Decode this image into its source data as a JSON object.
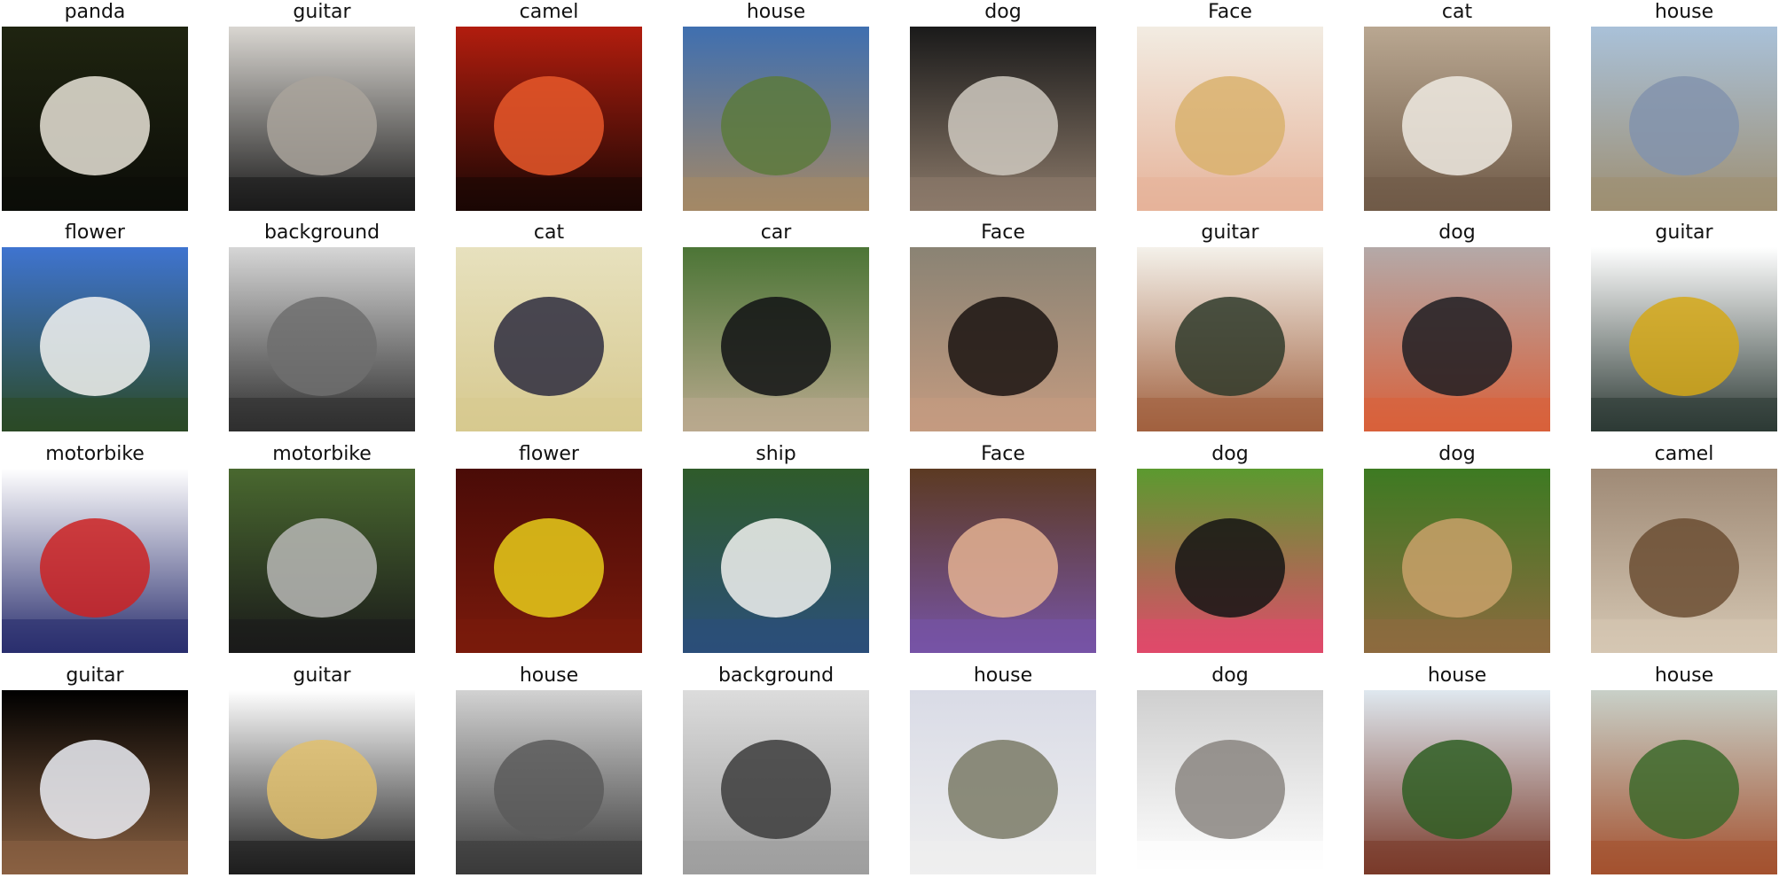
{
  "grid": {
    "columns": 8,
    "rows": 4,
    "cells": [
      {
        "label": "panda",
        "colors": [
          "#1f2410",
          "#e9e4d8",
          "#0c0d08"
        ]
      },
      {
        "label": "guitar",
        "colors": [
          "#d9d6d1",
          "#a9a39b",
          "#1a1a1a"
        ]
      },
      {
        "label": "camel",
        "colors": [
          "#b21d0e",
          "#e8582a",
          "#1a0704"
        ]
      },
      {
        "label": "house",
        "colors": [
          "#3f6fb0",
          "#5c7a3c",
          "#a48866"
        ]
      },
      {
        "label": "dog",
        "colors": [
          "#1a1a1a",
          "#cfc9c0",
          "#8c7a6a"
        ]
      },
      {
        "label": "Face",
        "colors": [
          "#f2ece2",
          "#d9b26d",
          "#e6b39a"
        ]
      },
      {
        "label": "cat",
        "colors": [
          "#b9a791",
          "#eeeae2",
          "#6f5a47"
        ]
      },
      {
        "label": "house",
        "colors": [
          "#a9c1d9",
          "#8293ad",
          "#9e8f72"
        ]
      },
      {
        "label": "flower",
        "colors": [
          "#3f74d0",
          "#f3f3f1",
          "#2b4a26"
        ]
      },
      {
        "label": "background",
        "colors": [
          "#d6d6d6",
          "#6e6e6e",
          "#2e2e2e"
        ]
      },
      {
        "label": "cat",
        "colors": [
          "#e7e1be",
          "#2d2c3e",
          "#d7c98f"
        ]
      },
      {
        "label": "car",
        "colors": [
          "#4c7536",
          "#111214",
          "#b9a98e"
        ]
      },
      {
        "label": "Face",
        "colors": [
          "#8a8374",
          "#1a1310",
          "#c49b80"
        ]
      },
      {
        "label": "guitar",
        "colors": [
          "#f4f1ea",
          "#2f3a2a",
          "#a1613f"
        ]
      },
      {
        "label": "dog",
        "colors": [
          "#b4a9a8",
          "#1e1d22",
          "#d8603a"
        ]
      },
      {
        "label": "guitar",
        "colors": [
          "#ffffff",
          "#d5a817",
          "#2d3a35"
        ]
      },
      {
        "label": "motorbike",
        "colors": [
          "#ffffff",
          "#cc2222",
          "#2a2f6e"
        ]
      },
      {
        "label": "motorbike",
        "colors": [
          "#49682f",
          "#b9b9b6",
          "#1a1a1a"
        ]
      },
      {
        "label": "flower",
        "colors": [
          "#4a0b07",
          "#e8cc1a",
          "#7a1a0c"
        ]
      },
      {
        "label": "ship",
        "colors": [
          "#2f5b2a",
          "#f2f2f0",
          "#2b4f7a"
        ]
      },
      {
        "label": "Face",
        "colors": [
          "#5c3a22",
          "#e4b192",
          "#7654a6"
        ]
      },
      {
        "label": "dog",
        "colors": [
          "#5b9a2f",
          "#141414",
          "#e04a6a"
        ]
      },
      {
        "label": "dog",
        "colors": [
          "#3d7a22",
          "#c9a16a",
          "#8d6a3f"
        ]
      },
      {
        "label": "camel",
        "colors": [
          "#9f8a76",
          "#6b4d32",
          "#d5c7b3"
        ]
      },
      {
        "label": "guitar",
        "colors": [
          "#000000",
          "#eceef6",
          "#8a6142"
        ]
      },
      {
        "label": "guitar",
        "colors": [
          "#ffffff",
          "#e1c06d",
          "#1e1e1e"
        ]
      },
      {
        "label": "house",
        "colors": [
          "#d2d2d2",
          "#5a5a5a",
          "#3a3a3a"
        ]
      },
      {
        "label": "background",
        "colors": [
          "#dcdcdc",
          "#3c3c3c",
          "#9e9e9e"
        ]
      },
      {
        "label": "house",
        "colors": [
          "#d9dbe6",
          "#7a7a66",
          "#efefef"
        ]
      },
      {
        "label": "dog",
        "colors": [
          "#cfcfcf",
          "#8a8580",
          "#ffffff"
        ]
      },
      {
        "label": "house",
        "colors": [
          "#dfe8ef",
          "#2f5e23",
          "#7a3a2a"
        ]
      },
      {
        "label": "house",
        "colors": [
          "#c8d0c8",
          "#3d6a2b",
          "#a4512f"
        ]
      }
    ]
  }
}
